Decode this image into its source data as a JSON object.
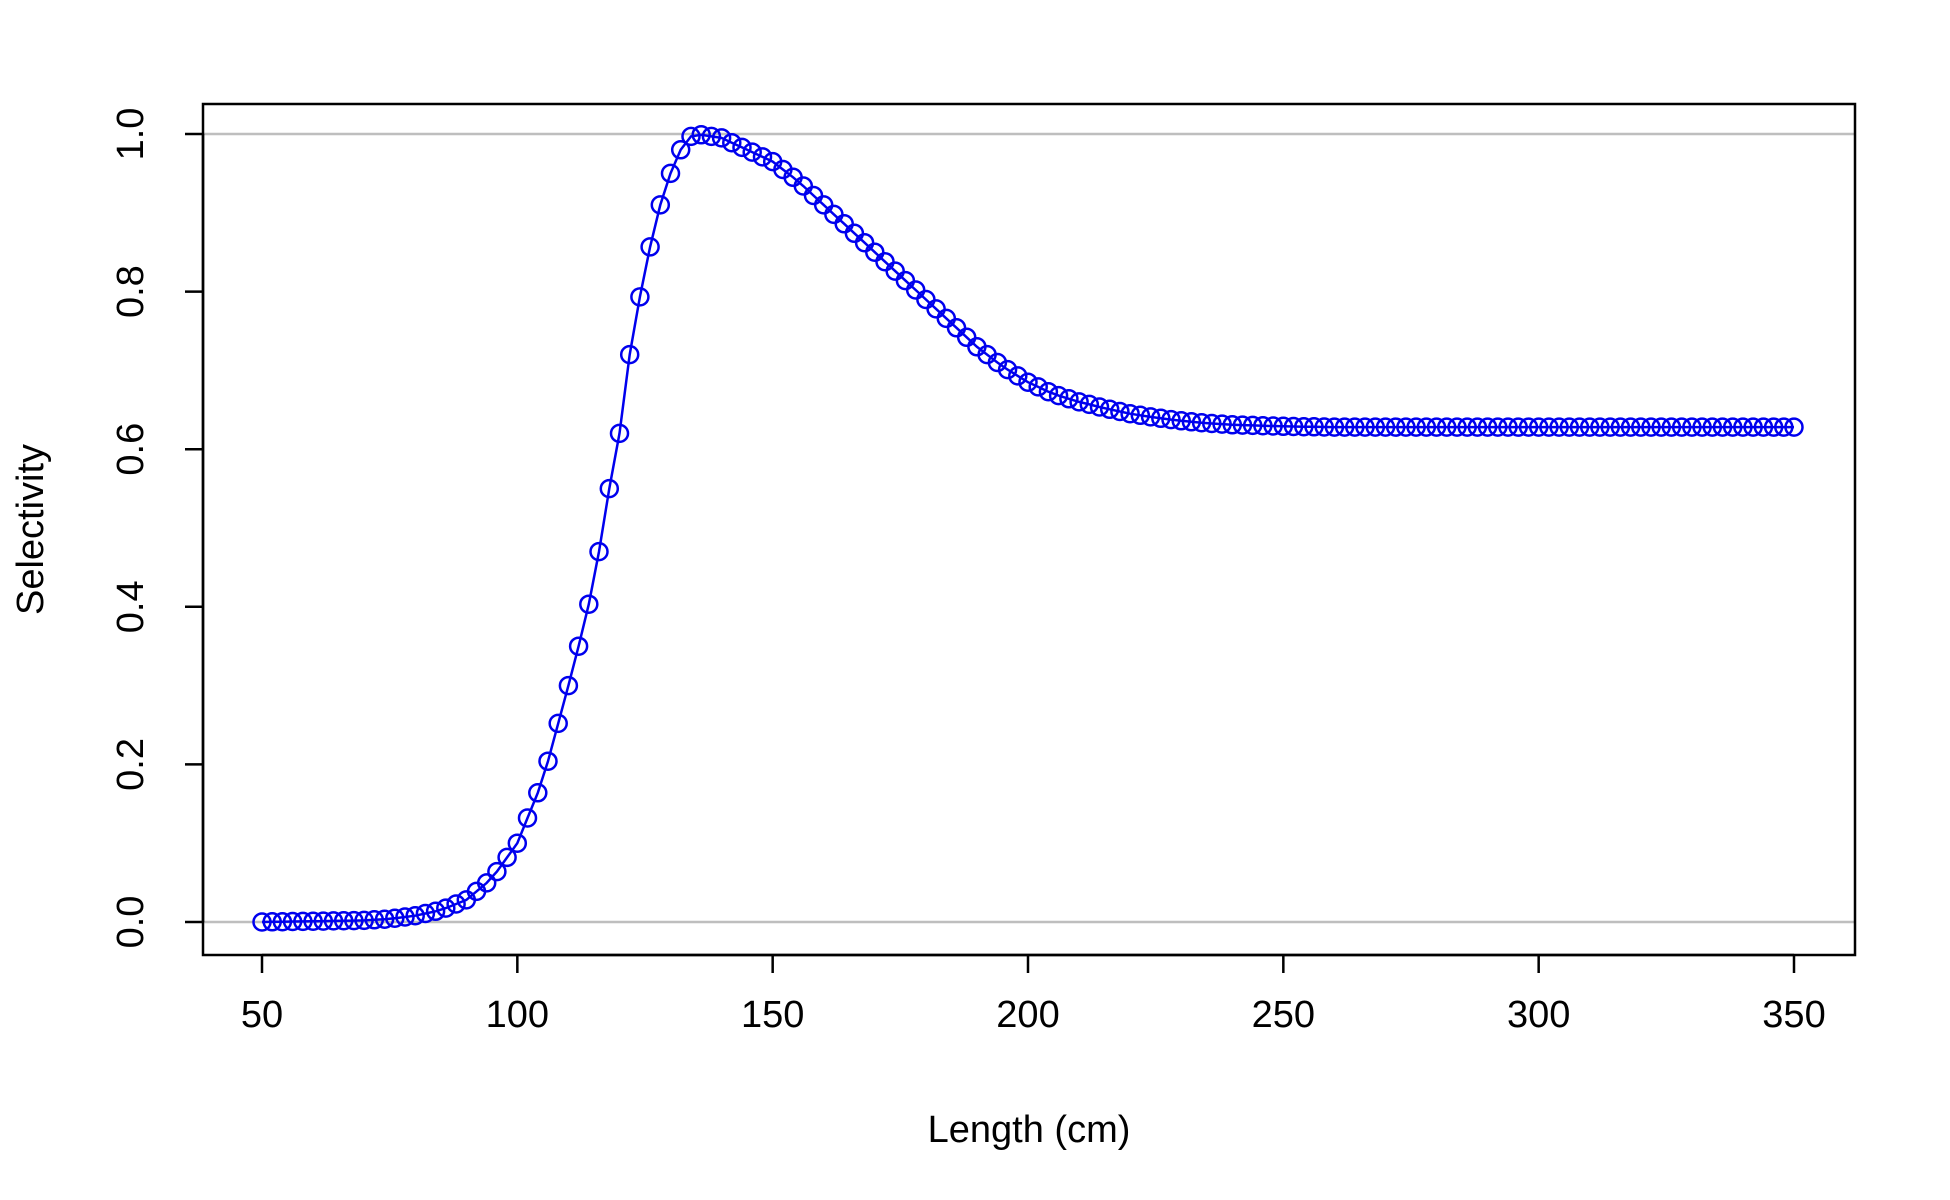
{
  "chart_data": {
    "type": "line",
    "title": "",
    "xlabel": "Length (cm)",
    "ylabel": "Selectivity",
    "xlim": [
      50,
      350
    ],
    "ylim": [
      0,
      1
    ],
    "x_ticks": [
      50,
      100,
      150,
      200,
      250,
      300,
      350
    ],
    "y_ticks": [
      0.0,
      0.2,
      0.4,
      0.6,
      0.8,
      1.0
    ],
    "x_tick_labels": [
      "50",
      "100",
      "150",
      "200",
      "250",
      "300",
      "350"
    ],
    "y_tick_labels": [
      "0.0",
      "0.2",
      "0.4",
      "0.6",
      "0.8",
      "1.0"
    ],
    "reference_lines": [
      0,
      1
    ],
    "grid": false,
    "legend": "none",
    "marker": "open-circle",
    "x_step": 2,
    "series": [
      {
        "color": "#0000ee",
        "ref_color": "#bebebe",
        "points": [
          [
            50,
            0.0
          ],
          [
            60,
            0.001
          ],
          [
            70,
            0.002
          ],
          [
            75,
            0.004
          ],
          [
            80,
            0.008
          ],
          [
            85,
            0.015
          ],
          [
            90,
            0.028
          ],
          [
            95,
            0.055
          ],
          [
            100,
            0.1
          ],
          [
            105,
            0.18
          ],
          [
            110,
            0.3
          ],
          [
            112,
            0.35
          ],
          [
            115,
            0.43
          ],
          [
            118,
            0.55
          ],
          [
            120,
            0.62
          ],
          [
            122,
            0.72
          ],
          [
            125,
            0.83
          ],
          [
            128,
            0.91
          ],
          [
            130,
            0.95
          ],
          [
            132,
            0.98
          ],
          [
            134,
            0.997
          ],
          [
            135,
            1.0
          ],
          [
            140,
            0.995
          ],
          [
            145,
            0.98
          ],
          [
            150,
            0.965
          ],
          [
            155,
            0.94
          ],
          [
            160,
            0.91
          ],
          [
            165,
            0.88
          ],
          [
            170,
            0.85
          ],
          [
            175,
            0.82
          ],
          [
            180,
            0.79
          ],
          [
            185,
            0.76
          ],
          [
            190,
            0.73
          ],
          [
            195,
            0.705
          ],
          [
            200,
            0.685
          ],
          [
            205,
            0.67
          ],
          [
            210,
            0.66
          ],
          [
            215,
            0.652
          ],
          [
            220,
            0.645
          ],
          [
            225,
            0.64
          ],
          [
            230,
            0.636
          ],
          [
            235,
            0.633
          ],
          [
            240,
            0.631
          ],
          [
            245,
            0.63
          ],
          [
            250,
            0.629
          ],
          [
            260,
            0.628
          ],
          [
            270,
            0.628
          ],
          [
            280,
            0.628
          ],
          [
            300,
            0.628
          ],
          [
            320,
            0.628
          ],
          [
            350,
            0.628
          ]
        ]
      }
    ]
  }
}
